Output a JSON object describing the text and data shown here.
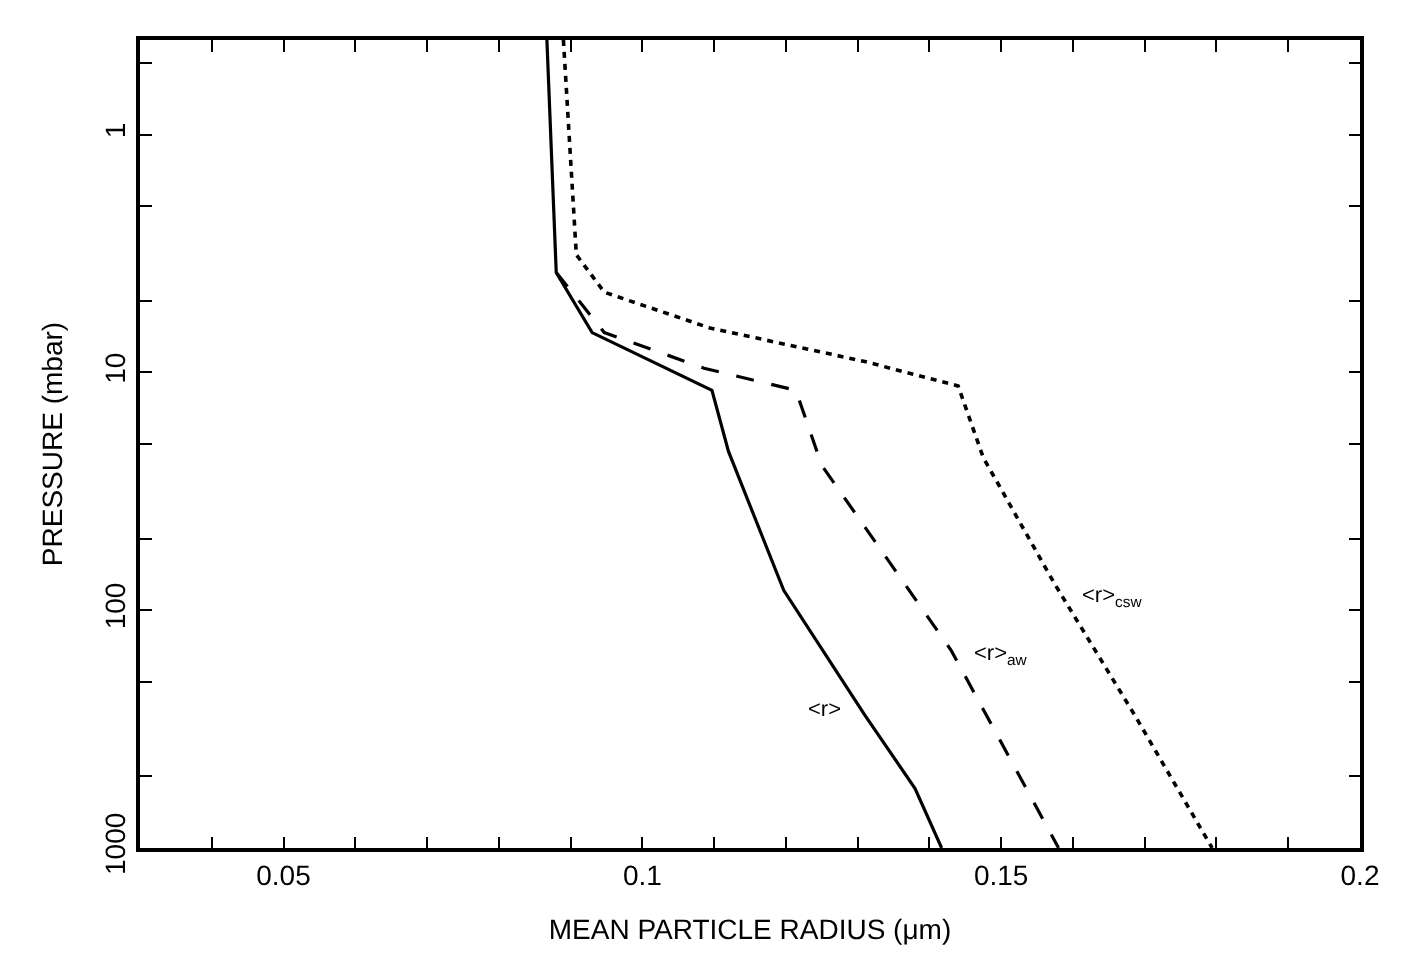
{
  "chart_data": {
    "type": "line",
    "xlabel": "MEAN PARTICLE RADIUS (μm)",
    "ylabel": "PRESSURE (mbar)",
    "log": "y",
    "legend": false,
    "marker": "none",
    "xlim": [
      0.03,
      0.2
    ],
    "ylim": [
      1000,
      0.4
    ],
    "xticks": [
      {
        "value": 0.04,
        "label": null
      },
      0.05,
      {
        "value": 0.06,
        "label": null
      },
      {
        "value": 0.07,
        "label": null
      },
      {
        "value": 0.08,
        "label": null
      },
      {
        "value": 0.09,
        "label": null
      },
      0.1,
      {
        "value": 0.11,
        "label": null
      },
      {
        "value": 0.12,
        "label": null
      },
      {
        "value": 0.13,
        "label": null
      },
      {
        "value": 0.14,
        "label": null
      },
      0.15,
      {
        "value": 0.16,
        "label": null
      },
      {
        "value": 0.17,
        "label": null
      },
      {
        "value": 0.18,
        "label": null
      },
      {
        "value": 0.19,
        "label": null
      },
      0.2
    ],
    "yticks": [
      {
        "value": 0.5,
        "label": null
      },
      1,
      {
        "value": 2,
        "label": null
      },
      {
        "value": 5,
        "label": null
      },
      10,
      {
        "value": 20,
        "label": null
      },
      {
        "value": 50,
        "label": null
      },
      100,
      {
        "value": 200,
        "label": null
      },
      {
        "value": 500,
        "label": null
      },
      1000
    ],
    "series": [
      {
        "name": "<r>",
        "color": "#000000",
        "line_style": "solid",
        "x": [
          0.0867,
          0.088,
          0.093,
          0.1097,
          0.112,
          0.1197,
          0.131,
          0.138,
          0.1417
        ],
        "values": [
          0.4,
          3.8,
          6.8,
          11.9,
          21.5,
          82.5,
          276,
          562,
          1000
        ]
      },
      {
        "name": "<r>$_{aw}$",
        "color": "#000000",
        "line_style": "dashed",
        "x": [
          0.088,
          0.0947,
          0.1086,
          0.1214,
          0.125,
          0.143,
          0.158
        ],
        "values": [
          3.8,
          6.8,
          9.6,
          11.9,
          24.6,
          147,
          1000
        ]
      },
      {
        "name": "<r>$_{csw}$",
        "color": "#000000",
        "line_style": "dotted",
        "x": [
          0.089,
          0.0908,
          0.0947,
          0.1094,
          0.131,
          0.144,
          0.1475,
          0.1575,
          0.1686,
          0.1794
        ],
        "values": [
          0.4,
          3.2,
          4.6,
          6.5,
          9,
          11.4,
          22.8,
          78,
          276,
          1000
        ]
      }
    ]
  }
}
